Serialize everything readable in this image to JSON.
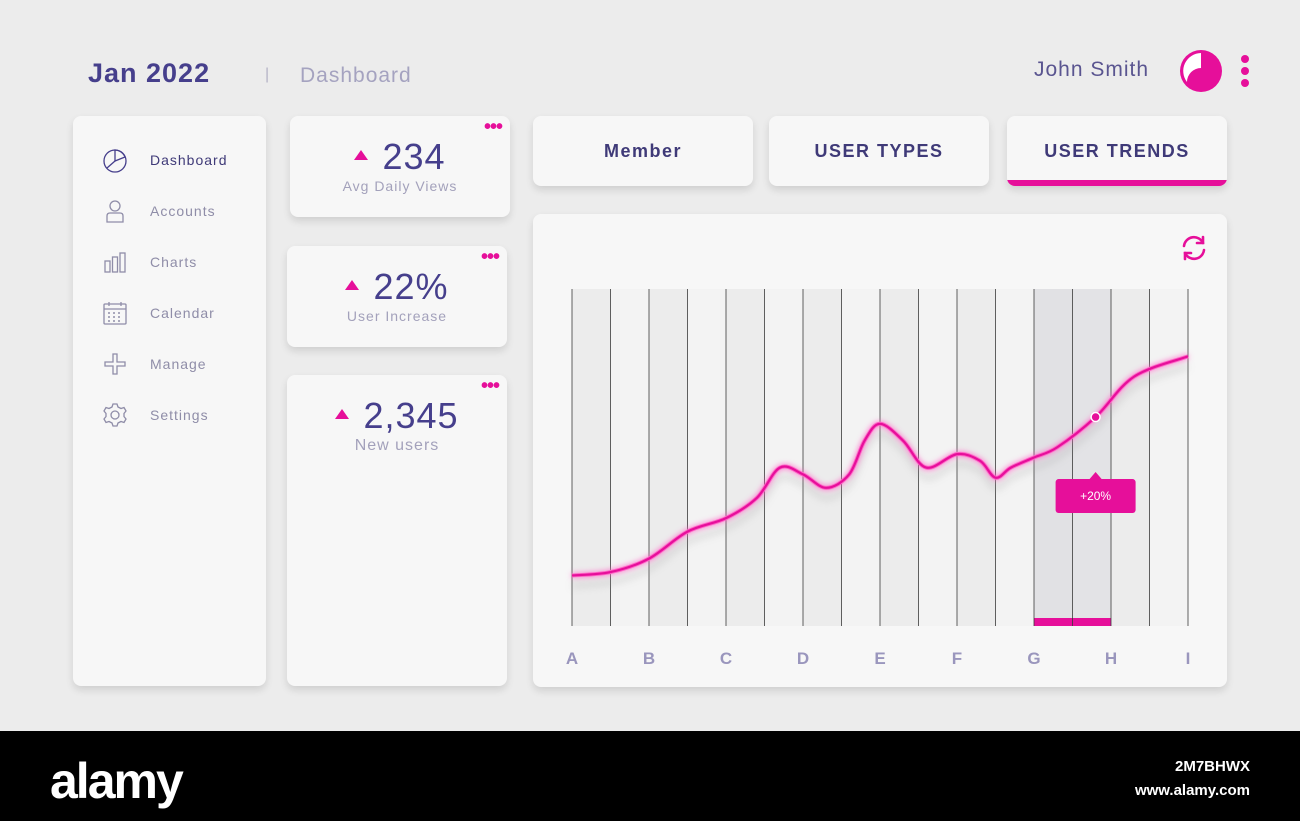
{
  "header": {
    "title": "Jan 2022",
    "separator": "|",
    "subtitle": "Dashboard",
    "user_name": "John Smith"
  },
  "colors": {
    "accent": "#e60f9a",
    "primary_text": "#463f8c",
    "muted_text": "#a3a1bb",
    "card_bg": "#f7f7f7",
    "page_bg": "#ececec"
  },
  "sidebar": {
    "items": [
      {
        "label": "Dashboard",
        "icon": "pie-chart-icon",
        "active": true
      },
      {
        "label": "Accounts",
        "icon": "user-icon",
        "active": false
      },
      {
        "label": "Charts",
        "icon": "bar-chart-icon",
        "active": false
      },
      {
        "label": "Calendar",
        "icon": "calendar-icon",
        "active": false
      },
      {
        "label": "Manage",
        "icon": "plus-icon",
        "active": false
      },
      {
        "label": "Settings",
        "icon": "gear-icon",
        "active": false
      }
    ]
  },
  "stats": [
    {
      "value": "234",
      "label": "Avg Daily Views",
      "trend": "up"
    },
    {
      "value": "22%",
      "label": "User Increase",
      "trend": "up"
    },
    {
      "value": "2,345",
      "label": "New users",
      "trend": "up"
    }
  ],
  "tabs": [
    {
      "label": "Member",
      "active": false
    },
    {
      "label": "USER TYPES",
      "active": false
    },
    {
      "label": "USER TRENDS",
      "active": true
    }
  ],
  "chart_data": {
    "type": "line",
    "categories": [
      "A",
      "B",
      "C",
      "D",
      "E",
      "F",
      "G",
      "H",
      "I"
    ],
    "highlighted_category": "H",
    "series": [
      {
        "points": [
          [
            0,
            15
          ],
          [
            0.5,
            16
          ],
          [
            1,
            20
          ],
          [
            1.5,
            28
          ],
          [
            2,
            32
          ],
          [
            2.4,
            38
          ],
          [
            2.7,
            47
          ],
          [
            3,
            45
          ],
          [
            3.3,
            41
          ],
          [
            3.6,
            45
          ],
          [
            3.8,
            55
          ],
          [
            4,
            60
          ],
          [
            4.3,
            55
          ],
          [
            4.6,
            47
          ],
          [
            5,
            51
          ],
          [
            5.3,
            49
          ],
          [
            5.5,
            44
          ],
          [
            5.7,
            47
          ],
          [
            6,
            50
          ],
          [
            6.3,
            53
          ],
          [
            6.8,
            62
          ],
          [
            7.3,
            74
          ],
          [
            8,
            80
          ]
        ]
      }
    ],
    "annotation": {
      "label": "+20%",
      "x": 6.8,
      "y": 62
    },
    "grid_vertical": true,
    "legend": "none"
  },
  "watermark": {
    "logo": "alamy",
    "id": "2M7BHWX",
    "url": "www.alamy.com"
  }
}
